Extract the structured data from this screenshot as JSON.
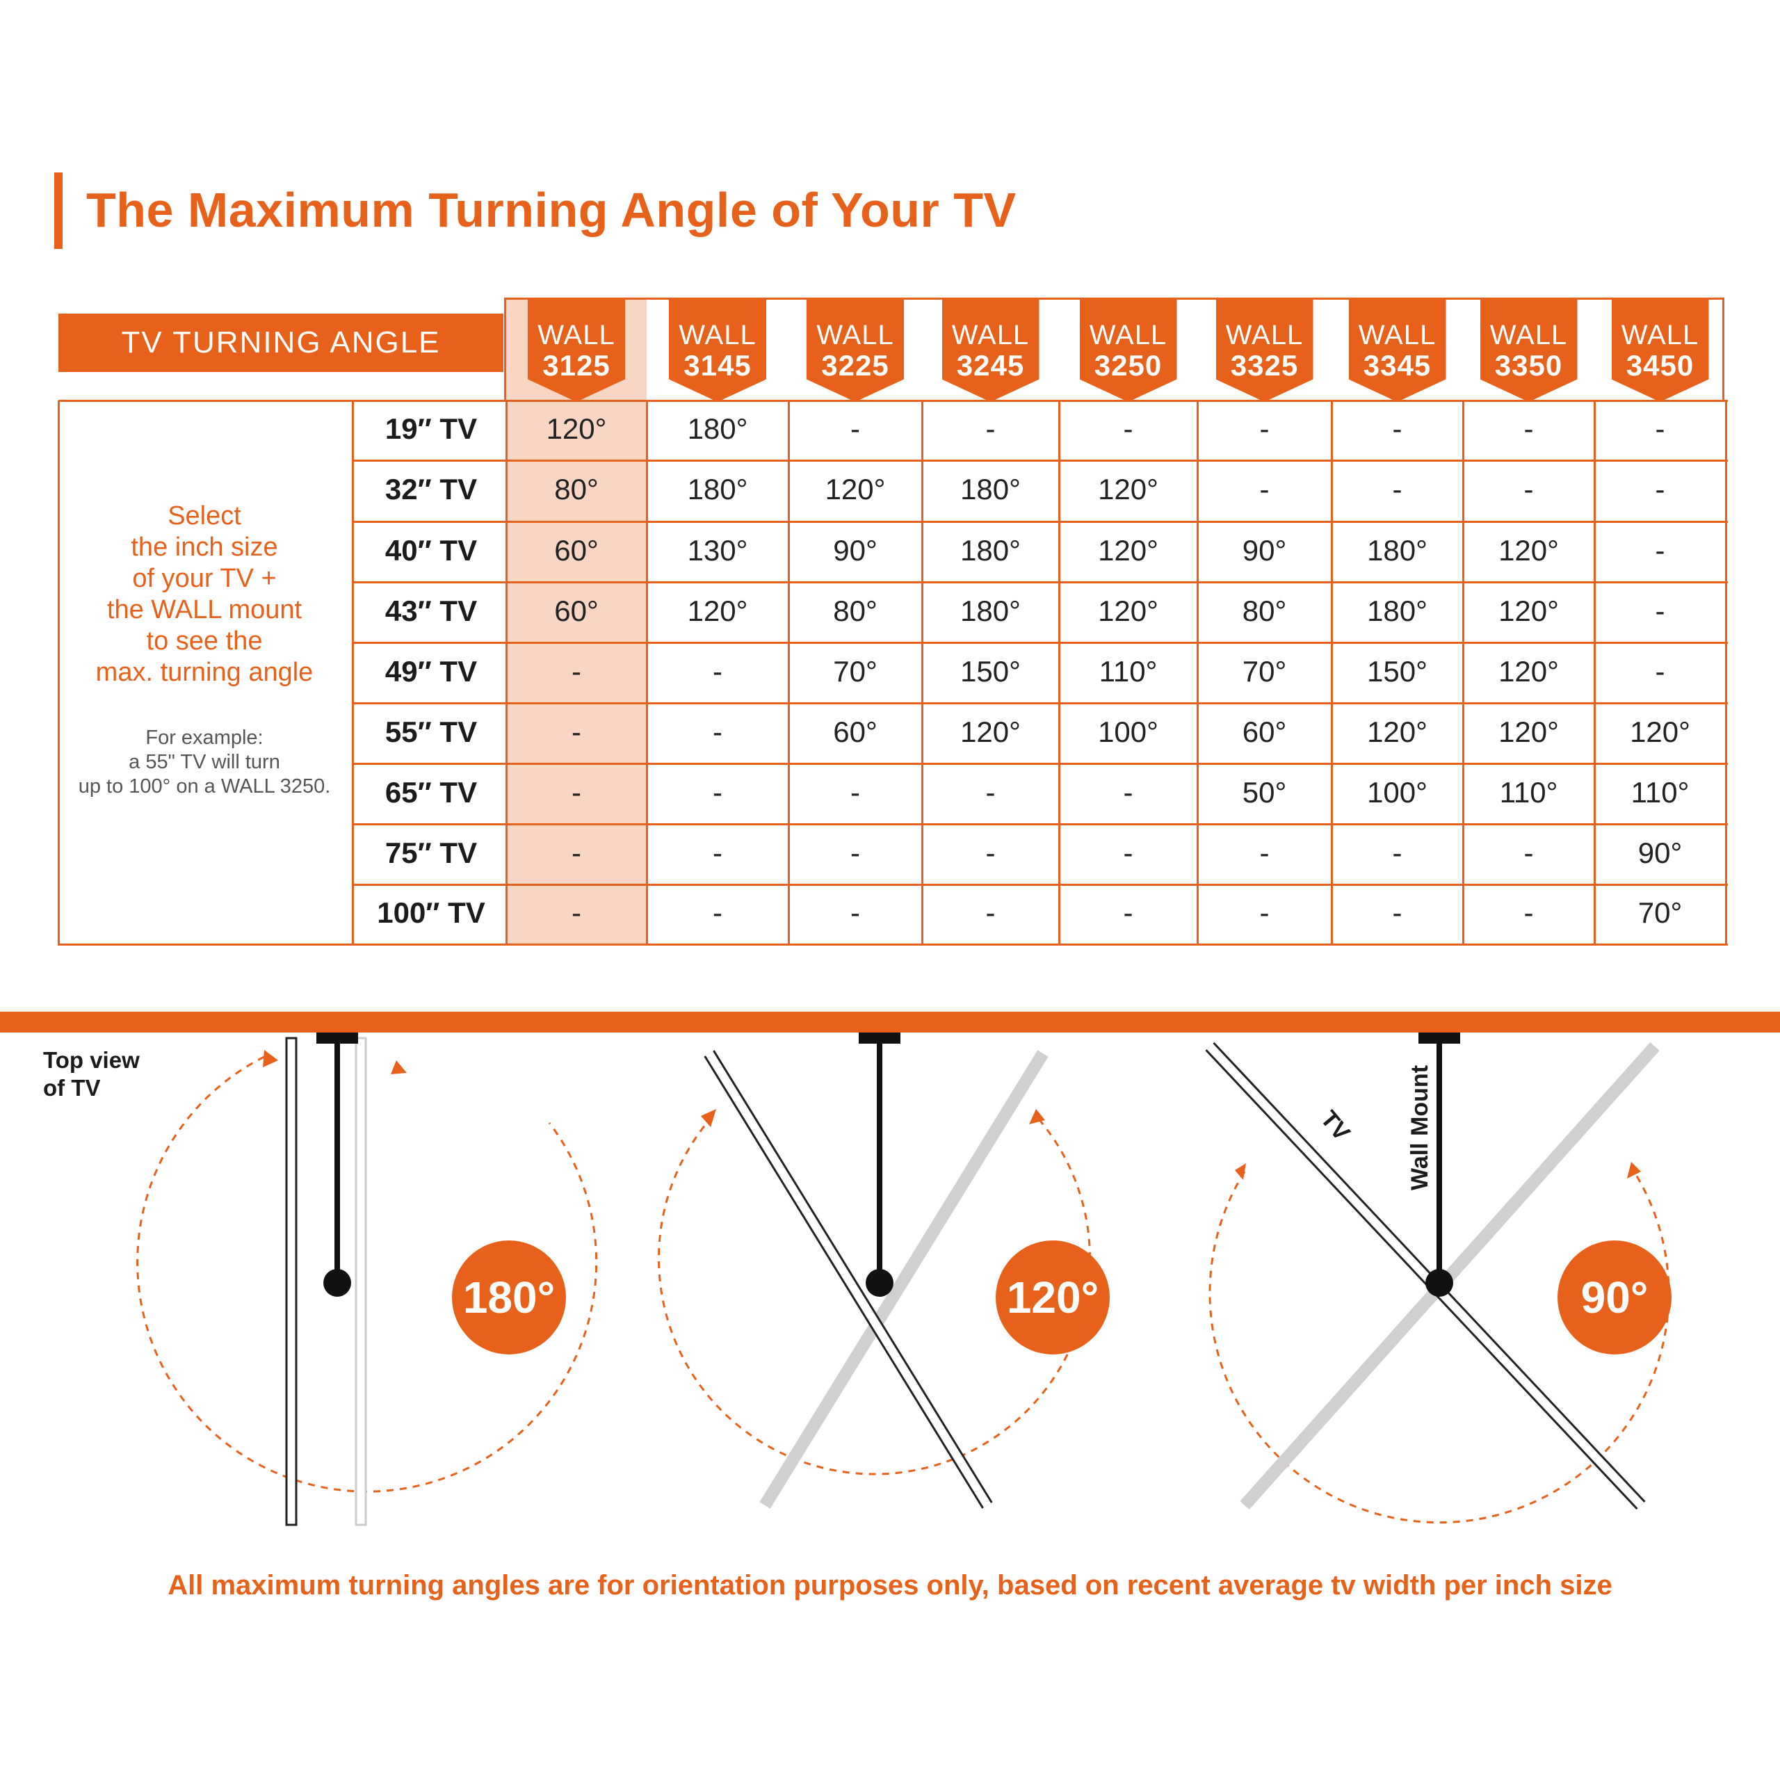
{
  "title": "The Maximum Turning Angle of Your TV",
  "table": {
    "corner_label": "TV TURNING ANGLE",
    "mounts": [
      {
        "line1": "WALL",
        "line2": "3125"
      },
      {
        "line1": "WALL",
        "line2": "3145"
      },
      {
        "line1": "WALL",
        "line2": "3225"
      },
      {
        "line1": "WALL",
        "line2": "3245"
      },
      {
        "line1": "WALL",
        "line2": "3250"
      },
      {
        "line1": "WALL",
        "line2": "3325"
      },
      {
        "line1": "WALL",
        "line2": "3345"
      },
      {
        "line1": "WALL",
        "line2": "3350"
      },
      {
        "line1": "WALL",
        "line2": "3450"
      }
    ],
    "rows": [
      {
        "size": "19″ TV",
        "values": [
          "120°",
          "180°",
          "-",
          "-",
          "-",
          "-",
          "-",
          "-",
          "-"
        ]
      },
      {
        "size": "32″ TV",
        "values": [
          "80°",
          "180°",
          "120°",
          "180°",
          "120°",
          "-",
          "-",
          "-",
          "-"
        ]
      },
      {
        "size": "40″ TV",
        "values": [
          "60°",
          "130°",
          "90°",
          "180°",
          "120°",
          "90°",
          "180°",
          "120°",
          "-"
        ]
      },
      {
        "size": "43″ TV",
        "values": [
          "60°",
          "120°",
          "80°",
          "180°",
          "120°",
          "80°",
          "180°",
          "120°",
          "-"
        ]
      },
      {
        "size": "49″ TV",
        "values": [
          "-",
          "-",
          "70°",
          "150°",
          "110°",
          "70°",
          "150°",
          "120°",
          "-"
        ]
      },
      {
        "size": "55″ TV",
        "values": [
          "-",
          "-",
          "60°",
          "120°",
          "100°",
          "60°",
          "120°",
          "120°",
          "120°"
        ]
      },
      {
        "size": "65″ TV",
        "values": [
          "-",
          "-",
          "-",
          "-",
          "-",
          "50°",
          "100°",
          "110°",
          "110°"
        ]
      },
      {
        "size": "75″ TV",
        "values": [
          "-",
          "-",
          "-",
          "-",
          "-",
          "-",
          "-",
          "-",
          "90°"
        ]
      },
      {
        "size": "100″ TV",
        "values": [
          "-",
          "-",
          "-",
          "-",
          "-",
          "-",
          "-",
          "-",
          "70°"
        ]
      }
    ],
    "instruction_lines": [
      "Select",
      "the inch size",
      "of your TV +",
      "the WALL mount",
      "to see the",
      "max. turning angle"
    ],
    "example_lines": [
      "For example:",
      "a 55\" TV will turn",
      "up to 100° on a WALL 3250."
    ]
  },
  "diagram": {
    "top_view_label_lines": [
      "Top view",
      "of TV"
    ],
    "tv_label": "TV",
    "wall_mount_label": "Wall Mount",
    "angles": [
      "180°",
      "120°",
      "90°"
    ]
  },
  "footnote": "All maximum turning angles are for orientation purposes only, based on recent average tv width per inch size",
  "colors": {
    "accent": "#e8611a",
    "highlight": "#f9d6c4",
    "text": "#1b1b1b"
  }
}
